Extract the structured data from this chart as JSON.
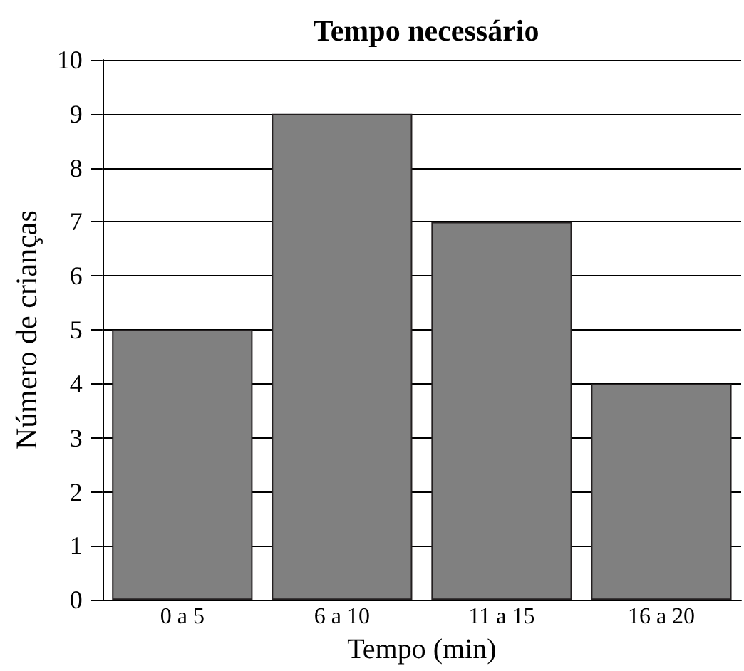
{
  "chart_data": {
    "type": "bar",
    "title": "Tempo necessário",
    "xlabel": "Tempo (min)",
    "ylabel": "Número de crianças",
    "categories": [
      "0 a 5",
      "6 a 10",
      "11 a 15",
      "16 a 20"
    ],
    "series": [
      {
        "color": "#808080",
        "values": [
          5,
          9,
          7,
          4
        ]
      }
    ],
    "ylim": [
      0,
      10
    ],
    "yticks": [
      0,
      1,
      2,
      3,
      4,
      5,
      6,
      7,
      8,
      9,
      10
    ],
    "grid": "y"
  }
}
